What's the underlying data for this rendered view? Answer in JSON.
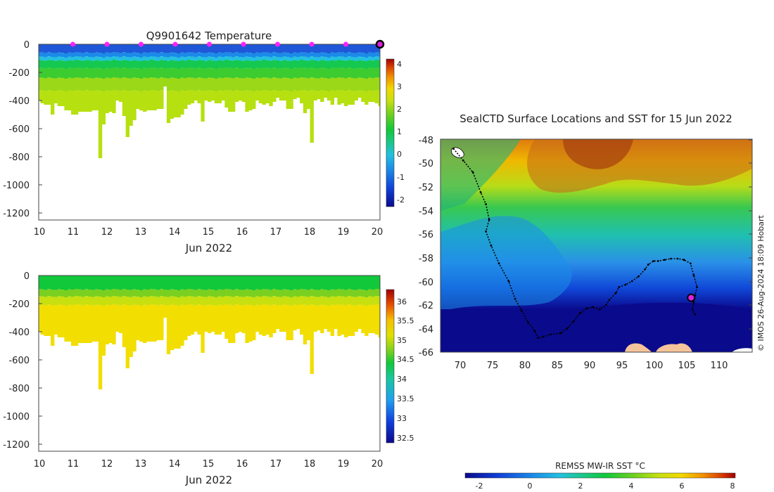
{
  "chart_data": [
    {
      "type": "heatmap",
      "title": "Q9901642  Temperature",
      "xlabel": "Jun 2022",
      "ylabel": "",
      "x_ticks": [
        "10",
        "11",
        "12",
        "13",
        "14",
        "15",
        "16",
        "17",
        "18",
        "19",
        "20"
      ],
      "y_ticks": [
        "0",
        "-200",
        "-400",
        "-600",
        "-800",
        "-1000",
        "-1200"
      ],
      "xlim": [
        10,
        20
      ],
      "ylim": [
        -1250,
        0
      ],
      "colorbar": {
        "ticks": [
          "4",
          "3",
          "2",
          "1",
          "0",
          "-1",
          "-2"
        ],
        "range": [
          -2.5,
          4.3
        ]
      },
      "profile_days": [
        10.0,
        10.1,
        10.2,
        10.3,
        10.4,
        10.5,
        10.6,
        10.7,
        10.8,
        10.9,
        11.0,
        11.1,
        11.2,
        11.3,
        11.4,
        11.5,
        11.6,
        11.7,
        11.8,
        11.9,
        12.0,
        12.1,
        12.2,
        12.3,
        12.4,
        12.5,
        12.6,
        12.7,
        12.8,
        12.9,
        13.0,
        13.1,
        13.2,
        13.3,
        13.4,
        13.5,
        13.6,
        13.7,
        13.8,
        13.9,
        14.0,
        14.1,
        14.2,
        14.3,
        14.4,
        14.5,
        14.6,
        14.7,
        14.8,
        14.9,
        15.0,
        15.1,
        15.2,
        15.3,
        15.4,
        15.5,
        15.6,
        15.7,
        15.8,
        15.9,
        16.0,
        16.1,
        16.2,
        16.3,
        16.4,
        16.5,
        16.6,
        16.7,
        16.8,
        16.9,
        17.0,
        17.1,
        17.2,
        17.3,
        17.4,
        17.5,
        17.6,
        17.7,
        17.8,
        17.9,
        18.0,
        18.1,
        18.2,
        18.3,
        18.4,
        18.5,
        18.6,
        18.7,
        18.8,
        18.9,
        19.0,
        19.1,
        19.2,
        19.3,
        19.4,
        19.5,
        19.6,
        19.7,
        19.8,
        19.9,
        20.0
      ],
      "max_depth_m": [
        400,
        420,
        430,
        430,
        500,
        420,
        440,
        440,
        470,
        470,
        500,
        500,
        480,
        480,
        480,
        480,
        470,
        470,
        810,
        570,
        490,
        480,
        490,
        400,
        410,
        510,
        660,
        580,
        540,
        460,
        470,
        480,
        470,
        470,
        470,
        460,
        460,
        300,
        560,
        530,
        520,
        520,
        500,
        460,
        430,
        420,
        400,
        420,
        550,
        400,
        410,
        400,
        420,
        420,
        400,
        450,
        480,
        480,
        410,
        400,
        410,
        480,
        470,
        460,
        400,
        420,
        430,
        420,
        440,
        410,
        380,
        400,
        400,
        460,
        460,
        390,
        380,
        420,
        490,
        460,
        700,
        400,
        390,
        410,
        380,
        400,
        430,
        380,
        430,
        420,
        440,
        430,
        430,
        400,
        380,
        410,
        430,
        410,
        410,
        420,
        440
      ],
      "surface_markers_day": [
        11,
        12,
        13,
        14,
        15,
        16,
        17,
        18,
        19
      ],
      "last_position_day": 20
    },
    {
      "type": "heatmap",
      "title": "",
      "xlabel": "Jun 2022",
      "ylabel": "",
      "x_ticks": [
        "10",
        "11",
        "12",
        "13",
        "14",
        "15",
        "16",
        "17",
        "18",
        "19",
        "20"
      ],
      "y_ticks": [
        "0",
        "-200",
        "-400",
        "-600",
        "-800",
        "-1000",
        "-1200"
      ],
      "xlim": [
        10,
        20
      ],
      "ylim": [
        -1250,
        0
      ],
      "colorbar": {
        "ticks": [
          "36",
          "35.5",
          "35",
          "34.5",
          "34",
          "33.5",
          "33",
          "32.5"
        ],
        "range": [
          32.3,
          36.2
        ]
      }
    },
    {
      "type": "heatmap",
      "title": "SealCTD Surface Locations and SST for 15 Jun 2022",
      "xlabel": "",
      "ylabel": "",
      "x_ticks": [
        "70",
        "75",
        "80",
        "85",
        "90",
        "95",
        "100",
        "105",
        "110"
      ],
      "y_ticks": [
        "-48",
        "-50",
        "-52",
        "-54",
        "-56",
        "-58",
        "-60",
        "-62",
        "-64",
        "-66"
      ],
      "xlim": [
        67,
        115
      ],
      "ylim": [
        -66,
        -48
      ],
      "colorbar": {
        "label": "REMSS MW-IR SST °C",
        "ticks": [
          "-2",
          "0",
          "2",
          "4",
          "6",
          "8"
        ],
        "range": [
          -2.5,
          8.2
        ]
      },
      "track_lon": [
        69.0,
        70.5,
        72.0,
        73.2,
        74.0,
        74.5,
        74.0,
        74.8,
        76.0,
        77.5,
        78.5,
        79.5,
        80.5,
        81.5,
        82.0,
        82.8,
        84.0,
        85.5,
        86.5,
        87.5,
        88.5,
        89.5,
        90.5,
        91.5,
        92.5,
        93.0,
        94.0,
        94.5,
        95.5,
        96.5,
        97.5,
        98.5,
        99.0,
        99.8,
        100.5,
        101.5,
        102.5,
        103.5,
        104.5,
        105.5,
        106.0,
        106.5,
        106.2,
        106.0,
        105.8,
        106.2
      ],
      "track_lat": [
        -48.8,
        -49.8,
        -50.8,
        -52.5,
        -53.5,
        -54.8,
        -55.8,
        -57.0,
        -58.5,
        -60.0,
        -61.5,
        -62.5,
        -63.5,
        -64.2,
        -64.8,
        -64.7,
        -64.5,
        -64.4,
        -64.0,
        -63.4,
        -62.7,
        -62.3,
        -62.2,
        -62.4,
        -62.0,
        -61.6,
        -61.0,
        -60.5,
        -60.3,
        -60.0,
        -59.6,
        -59.0,
        -58.6,
        -58.3,
        -58.3,
        -58.2,
        -58.1,
        -58.1,
        -58.2,
        -58.5,
        -59.5,
        -60.5,
        -61.2,
        -61.8,
        -62.4,
        -62.8
      ],
      "current_position": [
        105.6,
        -61.4
      ],
      "credit": "© IMOS 26-Aug-2024 18:09 Hobart"
    }
  ]
}
